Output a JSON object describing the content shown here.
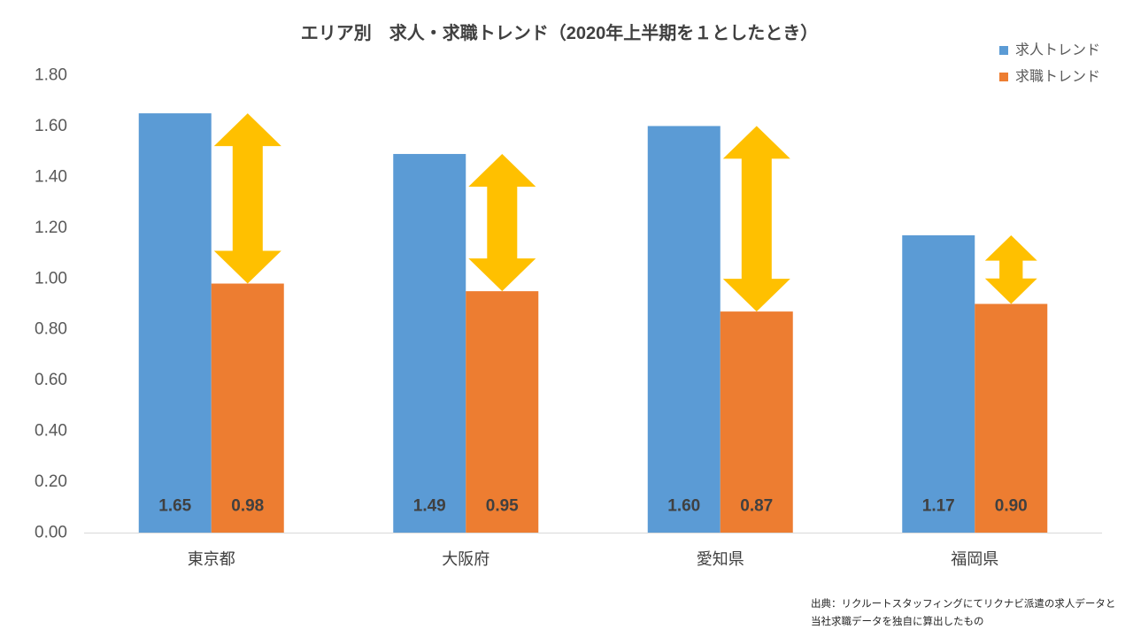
{
  "chart_data": {
    "type": "bar",
    "title": "エリア別　求人・求職トレンド（2020年上半期を１としたとき）",
    "categories": [
      "東京都",
      "大阪府",
      "愛知県",
      "福岡県"
    ],
    "series": [
      {
        "name": "求人トレンド",
        "values": [
          1.65,
          1.49,
          1.6,
          1.17
        ],
        "data_labels": [
          "1.65",
          "1.49",
          "1.60",
          "1.17"
        ],
        "color": "#5B9BD5"
      },
      {
        "name": "求職トレンド",
        "values": [
          0.98,
          0.95,
          0.87,
          0.9
        ],
        "data_labels": [
          "0.98",
          "0.95",
          "0.87",
          "0.90"
        ],
        "color": "#ED7D31"
      }
    ],
    "ylim": [
      0,
      1.8
    ],
    "y_tick_labels": [
      "0.00",
      "0.20",
      "0.40",
      "0.60",
      "0.80",
      "1.00",
      "1.20",
      "1.40",
      "1.60",
      "1.80"
    ],
    "grid": false,
    "legend": "top-right",
    "gap_arrow_color": "#FFC000",
    "source_note": [
      "出典：リクルートスタッフィングにてリクナビ派遣の求人データと",
      "当社求職データを独自に算出したもの"
    ]
  }
}
